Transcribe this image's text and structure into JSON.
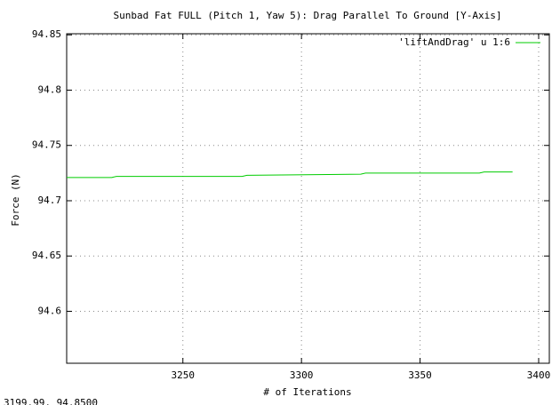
{
  "chart_data": {
    "type": "line",
    "title": "Sunbad Fat FULL (Pitch 1, Yaw 5): Drag Parallel To Ground [Y-Axis]",
    "x_label": "# of Iterations",
    "y_label": "Force (N)",
    "status": "3199.99, 94.8500",
    "xlim": [
      3201,
      3404.5
    ],
    "ylim": [
      94.553,
      94.851
    ],
    "xticks": [
      3250,
      3300,
      3350,
      3400
    ],
    "yticks": [
      94.6,
      94.65,
      94.7,
      94.75,
      94.8,
      94.85
    ],
    "grid": true,
    "legend": "top-right",
    "series": [
      {
        "name": "'liftAndDrag' u 1:6",
        "color": "#00cc00",
        "x": [
          3201,
          3220,
          3222,
          3275,
          3277,
          3325,
          3327,
          3375,
          3377,
          3389
        ],
        "values": [
          94.721,
          94.721,
          94.722,
          94.722,
          94.723,
          94.724,
          94.725,
          94.725,
          94.726,
          94.726
        ]
      }
    ]
  }
}
